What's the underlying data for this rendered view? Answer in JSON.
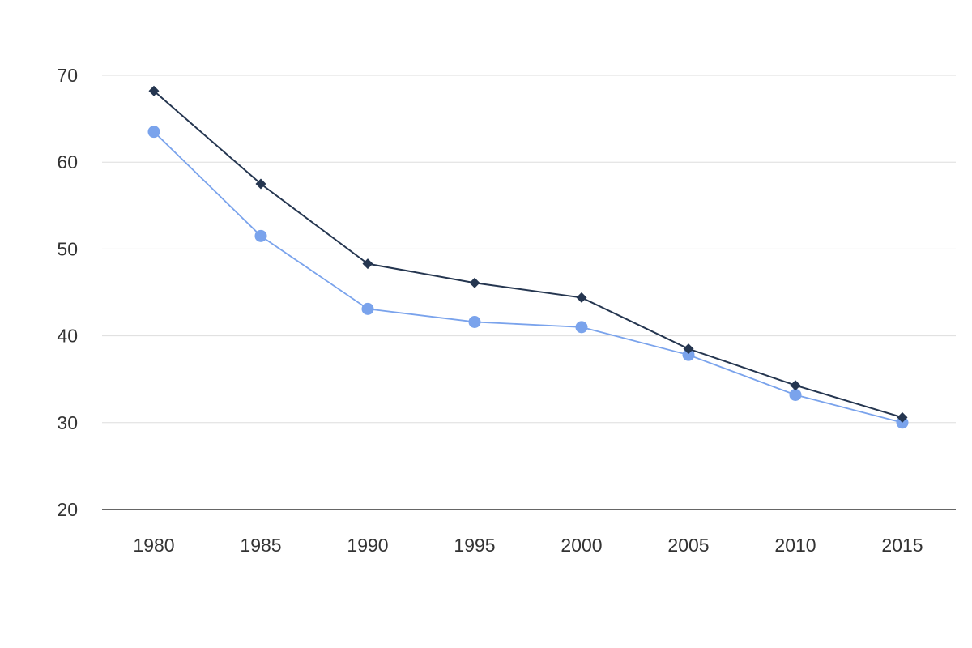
{
  "chart_data": {
    "type": "line",
    "title": "",
    "xlabel": "",
    "ylabel": "",
    "categories": [
      "1980",
      "1985",
      "1990",
      "1995",
      "2000",
      "2005",
      "2010",
      "2015"
    ],
    "ylim": [
      20,
      70
    ],
    "yticks": [
      20,
      30,
      40,
      50,
      60,
      70
    ],
    "grid": true,
    "legend": "none",
    "series": [
      {
        "values": [
          68.2,
          57.5,
          48.3,
          46.1,
          44.4,
          38.5,
          34.3,
          30.6
        ],
        "color": "#253650",
        "marker": "diamond"
      },
      {
        "values": [
          63.5,
          51.5,
          43.1,
          41.6,
          41.0,
          37.8,
          33.2,
          30.0
        ],
        "color": "#7aa3ec",
        "marker": "circle"
      }
    ]
  }
}
